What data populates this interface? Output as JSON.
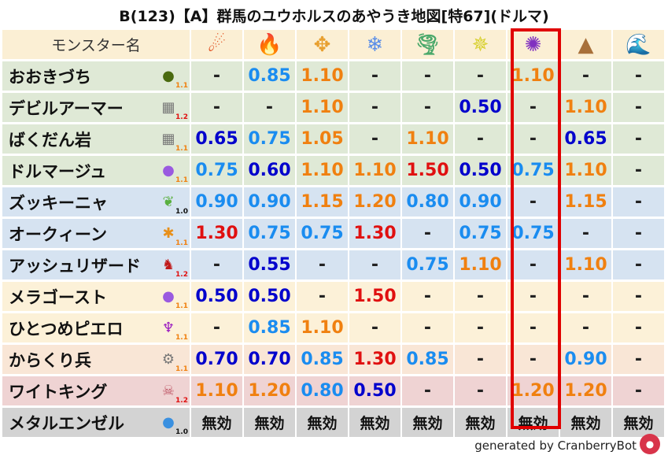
{
  "title": "B(123)【A】群馬のユウホルスのあやうき地図[特67](ドルマ)",
  "header": {
    "name_label": "モンスター名",
    "elements": [
      {
        "icon": "fire-ball-icon",
        "glyph": "☄",
        "color": "#e04a1a"
      },
      {
        "icon": "flame-icon",
        "glyph": "🔥",
        "color": "#e8501c"
      },
      {
        "icon": "explosion-icon",
        "glyph": "✥",
        "color": "#e8a030"
      },
      {
        "icon": "ice-icon",
        "glyph": "❄",
        "color": "#5a8ee8"
      },
      {
        "icon": "wind-icon",
        "glyph": "🌪",
        "color": "#4aa86a"
      },
      {
        "icon": "light-icon",
        "glyph": "✵",
        "color": "#d8d030"
      },
      {
        "icon": "darkness-icon",
        "glyph": "✺",
        "color": "#8030c0"
      },
      {
        "icon": "earth-icon",
        "glyph": "▲",
        "color": "#a8703a"
      },
      {
        "icon": "water-icon",
        "glyph": "🌊",
        "color": "#1a70d0"
      }
    ]
  },
  "highlight_column": 7,
  "value_colors": {
    "strong_resist": "#0000cc",
    "resist": "#1a8cf0",
    "weak": "#f08010",
    "very_weak": "#e01010",
    "neutral": "#222222",
    "immune": "#111111"
  },
  "scale_colors": {
    "1.0": "#111111",
    "1.1": "#f08010",
    "1.2": "#e01010"
  },
  "rows": [
    {
      "name": "おおきづち",
      "icon": "slime-green-icon",
      "glyph": "●",
      "icolor": "#4a6a10",
      "scale": "1.1",
      "bg": "#dfe9d6",
      "values": [
        "-",
        "0.85",
        "1.10",
        "-",
        "-",
        "-",
        "1.10",
        "-",
        "-"
      ]
    },
    {
      "name": "デビルアーマー",
      "icon": "brick-icon",
      "glyph": "▦",
      "icolor": "#777",
      "scale": "1.2",
      "bg": "#dfe9d6",
      "values": [
        "-",
        "-",
        "1.10",
        "-",
        "-",
        "0.50",
        "-",
        "1.10",
        "-"
      ]
    },
    {
      "name": "ばくだん岩",
      "icon": "brick-icon",
      "glyph": "▦",
      "icolor": "#777",
      "scale": "1.1",
      "bg": "#dfe9d6",
      "values": [
        "0.65",
        "0.75",
        "1.05",
        "-",
        "1.10",
        "-",
        "-",
        "0.65",
        "-"
      ]
    },
    {
      "name": "ドルマージュ",
      "icon": "ghost-icon",
      "glyph": "●",
      "icolor": "#9a5ae0",
      "scale": "1.1",
      "bg": "#dfe9d6",
      "values": [
        "0.75",
        "0.60",
        "1.10",
        "1.10",
        "1.50",
        "0.50",
        "0.75",
        "1.10",
        "-"
      ]
    },
    {
      "name": "ズッキーニャ",
      "icon": "leaf-icon",
      "glyph": "❦",
      "icolor": "#5ab040",
      "scale": "1.0",
      "bg": "#d6e3f1",
      "values": [
        "0.90",
        "0.90",
        "1.15",
        "1.20",
        "0.80",
        "0.90",
        "-",
        "1.15",
        "-"
      ]
    },
    {
      "name": "オークィーン",
      "icon": "paw-icon",
      "glyph": "✱",
      "icolor": "#e8901a",
      "scale": "1.1",
      "bg": "#d6e3f1",
      "values": [
        "1.30",
        "0.75",
        "0.75",
        "1.30",
        "-",
        "0.75",
        "0.75",
        "-",
        "-"
      ]
    },
    {
      "name": "アッシュリザード",
      "icon": "dragon-icon",
      "glyph": "♞",
      "icolor": "#c01a1a",
      "scale": "1.2",
      "bg": "#d6e3f1",
      "values": [
        "-",
        "0.55",
        "-",
        "-",
        "0.75",
        "1.10",
        "-",
        "1.10",
        "-"
      ]
    },
    {
      "name": "メラゴースト",
      "icon": "ghost-icon",
      "glyph": "●",
      "icolor": "#9a5ae0",
      "scale": "1.1",
      "bg": "#fcf1d8",
      "values": [
        "0.50",
        "0.50",
        "-",
        "1.50",
        "-",
        "-",
        "-",
        "-",
        "-"
      ]
    },
    {
      "name": "ひとつめピエロ",
      "icon": "trident-icon",
      "glyph": "♆",
      "icolor": "#9a1ac0",
      "scale": "1.1",
      "bg": "#fcf1d8",
      "values": [
        "-",
        "0.85",
        "1.10",
        "-",
        "-",
        "-",
        "-",
        "-",
        "-"
      ]
    },
    {
      "name": "からくり兵",
      "icon": "gear-icon",
      "glyph": "⚙",
      "icolor": "#777",
      "scale": "1.1",
      "bg": "#f9e6d6",
      "values": [
        "0.70",
        "0.70",
        "0.85",
        "1.30",
        "0.85",
        "-",
        "-",
        "0.90",
        "-"
      ]
    },
    {
      "name": "ワイトキング",
      "icon": "skull-icon",
      "glyph": "☠",
      "icolor": "#c05a6a",
      "scale": "1.2",
      "bg": "#efd3d3",
      "values": [
        "1.10",
        "1.20",
        "0.80",
        "0.50",
        "-",
        "-",
        "1.20",
        "1.20",
        "-"
      ]
    },
    {
      "name": "メタルエンゼル",
      "icon": "metal-slime-icon",
      "glyph": "●",
      "icolor": "#3a90e0",
      "scale": "1.0",
      "bg": "#d3d3d3",
      "values": [
        "無効",
        "無効",
        "無効",
        "無効",
        "無効",
        "無効",
        "無効",
        "無効",
        "無効"
      ]
    }
  ],
  "footer": "generated by CranberryBot",
  "bot_icon": "cranberry-bot-icon"
}
